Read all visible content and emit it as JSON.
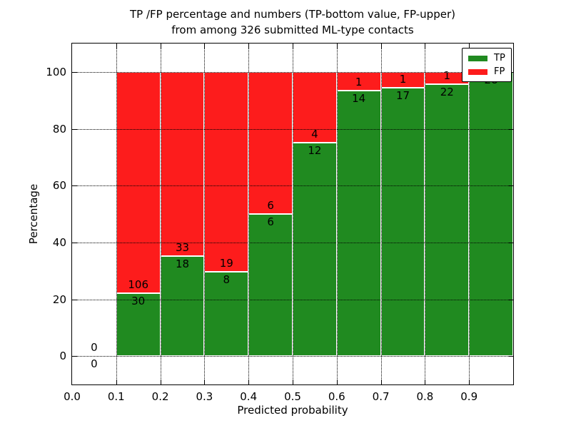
{
  "title": {
    "line1": "TP /FP percentage and numbers (TP-bottom value, FP-upper)",
    "line2": "from among 326 submitted ML-type contacts"
  },
  "axes": {
    "xlabel": "Predicted probability",
    "ylabel": "Percentage",
    "xtick_labels": [
      "0.0",
      "0.1",
      "0.2",
      "0.3",
      "0.4",
      "0.5",
      "0.6",
      "0.7",
      "0.8",
      "0.9"
    ],
    "ytick_labels": [
      "0",
      "20",
      "40",
      "60",
      "80",
      "100"
    ],
    "xlim": [
      0.0,
      1.0
    ],
    "ylim": [
      -10,
      110
    ],
    "grid": "dotted"
  },
  "legend": {
    "position": "upper right",
    "items": [
      {
        "label": "TP",
        "color": "#208a20"
      },
      {
        "label": "FP",
        "color": "#fd1c1c"
      }
    ]
  },
  "chart_data": {
    "type": "bar",
    "stacked": true,
    "normalized_to": 100,
    "title": "TP /FP percentage and numbers (TP-bottom value, FP-upper) from among 326 submitted ML-type contacts",
    "xlabel": "Predicted probability",
    "ylabel": "Percentage",
    "submitted_total": 326,
    "bin_width": 0.1,
    "series": [
      {
        "name": "TP",
        "color": "#208a20",
        "stack_order": "bottom"
      },
      {
        "name": "FP",
        "color": "#fd1c1c",
        "stack_order": "top"
      }
    ],
    "bins": [
      {
        "x_start": 0.0,
        "tp": 0,
        "fp": 0
      },
      {
        "x_start": 0.1,
        "tp": 30,
        "fp": 106
      },
      {
        "x_start": 0.2,
        "tp": 18,
        "fp": 33
      },
      {
        "x_start": 0.3,
        "tp": 8,
        "fp": 19
      },
      {
        "x_start": 0.4,
        "tp": 6,
        "fp": 6
      },
      {
        "x_start": 0.5,
        "tp": 12,
        "fp": 4
      },
      {
        "x_start": 0.6,
        "tp": 14,
        "fp": 1
      },
      {
        "x_start": 0.7,
        "tp": 17,
        "fp": 1
      },
      {
        "x_start": 0.8,
        "tp": 22,
        "fp": 1
      },
      {
        "x_start": 0.9,
        "tp": 28,
        "fp": 0
      }
    ]
  }
}
